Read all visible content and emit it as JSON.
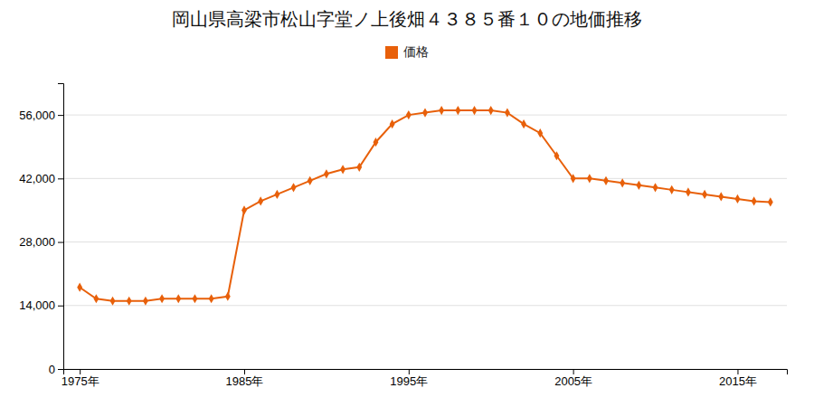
{
  "chart_data": {
    "type": "line",
    "title": "岡山県高梁市松山字堂ノ上後畑４３８５番１０の地価推移",
    "x": [
      1975,
      1976,
      1977,
      1978,
      1979,
      1980,
      1981,
      1982,
      1983,
      1984,
      1985,
      1986,
      1987,
      1988,
      1989,
      1990,
      1991,
      1992,
      1993,
      1994,
      1995,
      1996,
      1997,
      1998,
      1999,
      2000,
      2001,
      2002,
      2003,
      2004,
      2005,
      2006,
      2007,
      2008,
      2009,
      2010,
      2011,
      2012,
      2013,
      2014,
      2015,
      2016,
      2017
    ],
    "series": [
      {
        "name": "価格",
        "color": "#e8600a",
        "marker": "diamond",
        "values": [
          18000,
          15500,
          15000,
          15000,
          15000,
          15500,
          15500,
          15500,
          15500,
          16000,
          35000,
          37000,
          38500,
          40000,
          41500,
          43000,
          44000,
          44500,
          50000,
          54000,
          56000,
          56500,
          57000,
          57000,
          57000,
          57000,
          56500,
          54000,
          52000,
          47000,
          42000,
          42000,
          41500,
          41000,
          40500,
          40000,
          39500,
          39000,
          38500,
          38000,
          37500,
          37000,
          36800
        ]
      }
    ],
    "xlim": [
      1974,
      2018
    ],
    "xticks": [
      {
        "value": 1975,
        "label": "1975年"
      },
      {
        "value": 1985,
        "label": "1985年"
      },
      {
        "value": 1995,
        "label": "1995年"
      },
      {
        "value": 2005,
        "label": "2005年"
      },
      {
        "value": 2015,
        "label": "2015年"
      }
    ],
    "ylim": [
      0,
      63000
    ],
    "yticks": [
      0,
      {
        "value": 14000,
        "label": "14,000"
      },
      {
        "value": 28000,
        "label": "28,000"
      },
      {
        "value": 42000,
        "label": "42,000"
      },
      {
        "value": 56000,
        "label": "56,000"
      }
    ],
    "grid": true,
    "legend": "top"
  }
}
